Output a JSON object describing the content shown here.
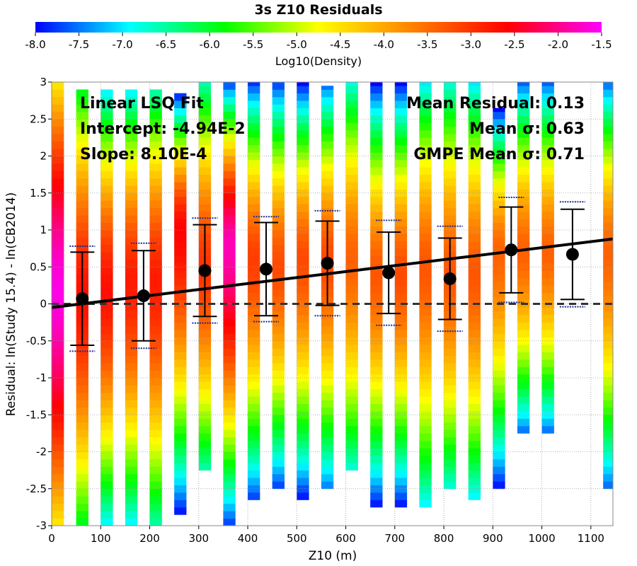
{
  "chart_data": {
    "type": "heatmap",
    "title": "3s Z10 Residuals",
    "xlabel": "Z10 (m)",
    "ylabel": "Residual: ln(Study 15.4) - ln(CB2014)",
    "xlim": [
      0,
      1145
    ],
    "ylim": [
      -3,
      3
    ],
    "x_ticks": [
      "0",
      "100",
      "200",
      "300",
      "400",
      "500",
      "600",
      "700",
      "800",
      "900",
      "1000",
      "1100"
    ],
    "x_tick_values": [
      0,
      100,
      200,
      300,
      400,
      500,
      600,
      700,
      800,
      900,
      1000,
      1100
    ],
    "y_ticks": [
      "3",
      "2.5",
      "2",
      "1.5",
      "1",
      "0.5",
      "0",
      "-0.5",
      "-1",
      "-1.5",
      "-2",
      "-2.5",
      "-3"
    ],
    "y_tick_values": [
      3,
      2.5,
      2,
      1.5,
      1,
      0.5,
      0,
      -0.5,
      -1,
      -1.5,
      -2,
      -2.5,
      -3
    ],
    "grid": true,
    "colorbar": {
      "label": "Log10(Density)",
      "min": -8.0,
      "max": -1.5,
      "ticks": [
        "-8.0",
        "-7.5",
        "-7.0",
        "-6.5",
        "-6.0",
        "-5.5",
        "-5.0",
        "-4.5",
        "-4.0",
        "-3.5",
        "-3.0",
        "-2.5",
        "-2.0",
        "-1.5"
      ],
      "tick_values": [
        -8.0,
        -7.5,
        -7.0,
        -6.5,
        -6.0,
        -5.5,
        -5.0,
        -4.5,
        -4.0,
        -3.5,
        -3.0,
        -2.5,
        -2.0,
        -1.5
      ],
      "colormap": [
        "#0000ff",
        "#00ffff",
        "#00ff00",
        "#ffff00",
        "#ff8000",
        "#ff0000",
        "#ff00ff"
      ]
    },
    "density_bins": {
      "bin_width": 25,
      "columns": [
        {
          "x": 12.5,
          "ymin": -3,
          "ymax": 3,
          "peak": 0.2,
          "density_peak": -1.6,
          "density_edge": -4.6
        },
        {
          "x": 62.5,
          "ymin": -3,
          "ymax": 2.9,
          "peak": 0.1,
          "density_peak": -2.7,
          "density_edge": -6.0
        },
        {
          "x": 112.5,
          "ymin": -3,
          "ymax": 2.9,
          "peak": 0.2,
          "density_peak": -2.7,
          "density_edge": -7.0
        },
        {
          "x": 162.5,
          "ymin": -3,
          "ymax": 2.9,
          "peak": 0.3,
          "density_peak": -2.8,
          "density_edge": -7.0
        },
        {
          "x": 212.5,
          "ymin": -3,
          "ymax": 2.9,
          "peak": 0.3,
          "density_peak": -2.8,
          "density_edge": -6.6
        },
        {
          "x": 262.5,
          "ymin": -2.85,
          "ymax": 2.85,
          "peak": 1.0,
          "density_peak": -2.6,
          "density_edge": -8.0
        },
        {
          "x": 312.5,
          "ymin": -2.25,
          "ymax": 3,
          "peak": 0.5,
          "density_peak": -3.0,
          "density_edge": -6.6
        },
        {
          "x": 362.5,
          "ymin": -3,
          "ymax": 3,
          "peak": 0.8,
          "density_peak": -1.8,
          "density_edge": -7.8
        },
        {
          "x": 412.5,
          "ymin": -2.65,
          "ymax": 3,
          "peak": 0.6,
          "density_peak": -3.1,
          "density_edge": -7.8
        },
        {
          "x": 462.5,
          "ymin": -2.5,
          "ymax": 3,
          "peak": 0.5,
          "density_peak": -3.2,
          "density_edge": -7.8
        },
        {
          "x": 512.5,
          "ymin": -2.65,
          "ymax": 3,
          "peak": 0.6,
          "density_peak": -3.2,
          "density_edge": -8.0
        },
        {
          "x": 562.5,
          "ymin": -2.5,
          "ymax": 2.95,
          "peak": 0.6,
          "density_peak": -3.2,
          "density_edge": -7.5
        },
        {
          "x": 612.5,
          "ymin": -2.25,
          "ymax": 3,
          "peak": 0.6,
          "density_peak": -3.4,
          "density_edge": -6.8
        },
        {
          "x": 662.5,
          "ymin": -2.75,
          "ymax": 3,
          "peak": 0.4,
          "density_peak": -3.3,
          "density_edge": -8.0
        },
        {
          "x": 712.5,
          "ymin": -2.75,
          "ymax": 3,
          "peak": 0.4,
          "density_peak": -3.2,
          "density_edge": -8.0
        },
        {
          "x": 762.5,
          "ymin": -2.75,
          "ymax": 3,
          "peak": 0.5,
          "density_peak": -3.3,
          "density_edge": -7.0
        },
        {
          "x": 812.5,
          "ymin": -2.5,
          "ymax": 3,
          "peak": 0.4,
          "density_peak": -3.3,
          "density_edge": -6.8
        },
        {
          "x": 862.5,
          "ymin": -2.65,
          "ymax": 3,
          "peak": 0.4,
          "density_peak": -3.3,
          "density_edge": -7.0
        },
        {
          "x": 912.5,
          "ymin": -2.5,
          "ymax": 2.65,
          "peak": 0.7,
          "density_peak": -3.4,
          "density_edge": -8.0
        },
        {
          "x": 962.5,
          "ymin": -1.75,
          "ymax": 3,
          "peak": 0.7,
          "density_peak": -3.4,
          "density_edge": -7.6
        },
        {
          "x": 1012.5,
          "ymin": -1.75,
          "ymax": 3,
          "peak": 0.7,
          "density_peak": -3.4,
          "density_edge": -7.6
        },
        {
          "x": 1137.5,
          "ymin": -2.5,
          "ymax": 3,
          "peak": 0.7,
          "density_peak": -3.4,
          "density_edge": -7.6
        }
      ]
    },
    "bin_stats": {
      "x": [
        62.5,
        187.5,
        312.5,
        437.5,
        562.5,
        687.5,
        812.5,
        937.5,
        1062.5
      ],
      "mean": [
        0.07,
        0.11,
        0.45,
        0.47,
        0.55,
        0.42,
        0.34,
        0.73,
        0.67
      ],
      "sigma": [
        0.63,
        0.61,
        0.62,
        0.63,
        0.57,
        0.55,
        0.55,
        0.58,
        0.61
      ],
      "gmpe_sigma": [
        0.71,
        0.71,
        0.71,
        0.71,
        0.71,
        0.71,
        0.71,
        0.71,
        0.71
      ]
    },
    "fit": {
      "intercept": -0.0494,
      "slope": 0.00081,
      "x_range": [
        0,
        1145
      ]
    },
    "zero_line": 0,
    "annotations_left": [
      "Linear LSQ Fit",
      "Intercept: -4.94E-2",
      "Slope: 8.10E-4"
    ],
    "annotations_right": [
      "Mean Residual: 0.13",
      "Mean σ: 0.63",
      "GMPE Mean σ: 0.71"
    ]
  }
}
